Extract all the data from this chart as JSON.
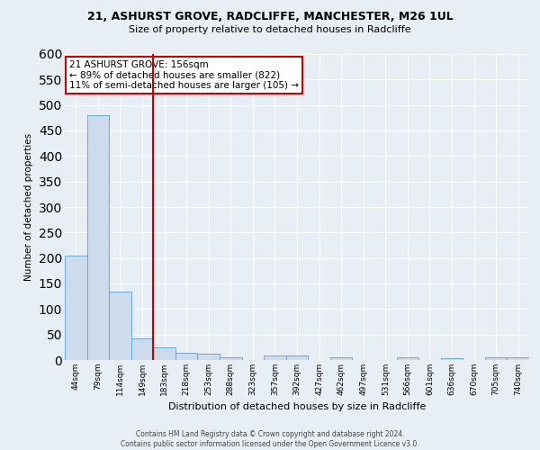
{
  "title_line1": "21, ASHURST GROVE, RADCLIFFE, MANCHESTER, M26 1UL",
  "title_line2": "Size of property relative to detached houses in Radcliffe",
  "xlabel": "Distribution of detached houses by size in Radcliffe",
  "ylabel": "Number of detached properties",
  "bin_labels": [
    "44sqm",
    "79sqm",
    "114sqm",
    "149sqm",
    "183sqm",
    "218sqm",
    "253sqm",
    "288sqm",
    "323sqm",
    "357sqm",
    "392sqm",
    "427sqm",
    "462sqm",
    "497sqm",
    "531sqm",
    "566sqm",
    "601sqm",
    "636sqm",
    "670sqm",
    "705sqm",
    "740sqm"
  ],
  "bar_heights": [
    204,
    480,
    135,
    43,
    25,
    14,
    12,
    6,
    0,
    9,
    9,
    0,
    5,
    0,
    0,
    6,
    0,
    4,
    0,
    5,
    5
  ],
  "bar_color": "#ccdcec",
  "bar_edge_color": "#6aaad4",
  "background_color": "#e8eef5",
  "grid_color": "#ffffff",
  "red_line_x": 3.5,
  "annotation_text": "21 ASHURST GROVE: 156sqm\n← 89% of detached houses are smaller (822)\n11% of semi-detached houses are larger (105) →",
  "annotation_box_color": "#ffffff",
  "annotation_border_color": "#cc0000",
  "red_line_color": "#cc0000",
  "footer_line1": "Contains HM Land Registry data © Crown copyright and database right 2024.",
  "footer_line2": "Contains public sector information licensed under the Open Government Licence v3.0.",
  "ylim": [
    0,
    600
  ],
  "yticks": [
    0,
    50,
    100,
    150,
    200,
    250,
    300,
    350,
    400,
    450,
    500,
    550,
    600
  ]
}
